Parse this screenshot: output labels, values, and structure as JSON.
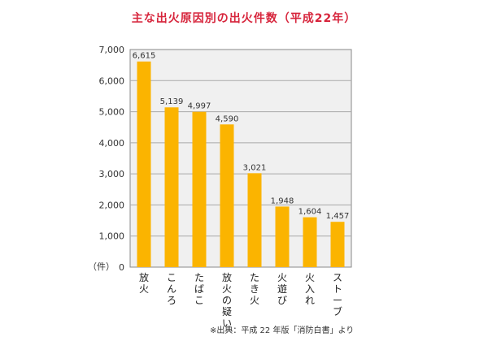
{
  "chart_data": {
    "type": "bar",
    "title": "主な出火原因別の出火件数（平成22年）",
    "ylabel": "（件）",
    "ylim": [
      0,
      7000
    ],
    "yticks": [
      "0",
      "1,000",
      "2,000",
      "3,000",
      "4,000",
      "5,000",
      "6,000",
      "7,000"
    ],
    "categories": [
      "放火",
      "こんろ",
      "たばこ",
      "放火の疑い",
      "たき火",
      "火遊び",
      "火入れ",
      "ストーブ"
    ],
    "values": [
      6615,
      5139,
      4997,
      4590,
      3021,
      1948,
      1604,
      1457
    ],
    "data_labels": [
      "6,615",
      "5,139",
      "4,997",
      "4,590",
      "3,021",
      "1,948",
      "1,604",
      "1,457"
    ],
    "grid": true,
    "bar_color": "#fbb400",
    "plot_bg": "#f0f0f0"
  },
  "source_note": "※出典：平成 22 年版「消防白書」より"
}
